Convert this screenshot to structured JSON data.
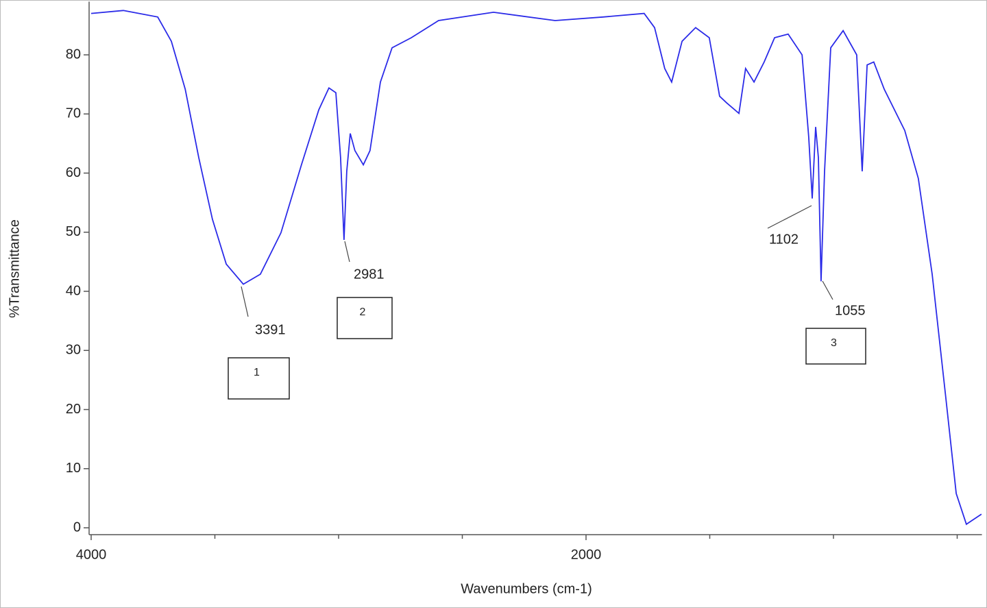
{
  "chart_data": {
    "type": "line",
    "x_label": "Wavenumbers (cm-1)",
    "y_label": "%Transmittance",
    "xlim": [
      4000,
      400
    ],
    "ylim": [
      -1,
      89
    ],
    "xticks": [
      4000,
      2000
    ],
    "xminorticks": [
      3500,
      3000,
      2500,
      1500,
      1000,
      500
    ],
    "yticks": [
      0,
      10,
      20,
      30,
      40,
      50,
      60,
      70,
      80
    ],
    "series": [
      {
        "color": "#2a2ae8",
        "x": [
          4000,
          3870,
          3731,
          3676,
          3620,
          3565,
          3510,
          3454,
          3385,
          3316,
          3233,
          3150,
          3080,
          3039,
          3011,
          2992,
          2978,
          2967,
          2953,
          2934,
          2900,
          2873,
          2831,
          2784,
          2706,
          2596,
          2374,
          2125,
          1931,
          1765,
          1723,
          1682,
          1654,
          1612,
          1557,
          1502,
          1460,
          1432,
          1382,
          1355,
          1321,
          1280,
          1238,
          1183,
          1127,
          1100,
          1086,
          1072,
          1061,
          1050,
          1036,
          1011,
          961,
          906,
          884,
          864,
          837,
          795,
          712,
          657,
          601,
          546,
          504,
          463,
          402
        ],
        "values": [
          87,
          87.5,
          86.4,
          82.3,
          74.2,
          62.6,
          52.2,
          44.6,
          41.2,
          42.9,
          49.9,
          61.4,
          70.7,
          74.4,
          73.6,
          62.6,
          48.7,
          60.3,
          66.7,
          63.8,
          61.4,
          63.8,
          75.4,
          81.2,
          82.9,
          85.8,
          87.2,
          85.8,
          86.4,
          87,
          84.6,
          77.7,
          75.4,
          82.3,
          84.6,
          82.9,
          73,
          71.9,
          70.1,
          77.7,
          75.4,
          78.8,
          82.9,
          83.5,
          80,
          66.1,
          55.7,
          67.8,
          62.6,
          41.7,
          60.3,
          81.2,
          84.1,
          80,
          60.3,
          78.3,
          78.8,
          74.2,
          67.2,
          59.1,
          42.9,
          22,
          5.8,
          0.6,
          2.3
        ]
      }
    ],
    "annotations": [
      "3391",
      "2981",
      "1102",
      "1055"
    ],
    "boxes": [
      "1",
      "2",
      "3"
    ]
  }
}
